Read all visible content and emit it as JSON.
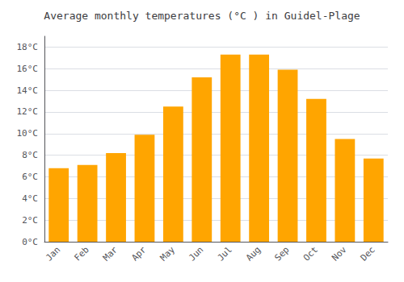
{
  "chart_data": {
    "type": "bar",
    "title": "Average monthly temperatures (°C ) in Guidel-Plage",
    "categories": [
      "Jan",
      "Feb",
      "Mar",
      "Apr",
      "May",
      "Jun",
      "Jul",
      "Aug",
      "Sep",
      "Oct",
      "Nov",
      "Dec"
    ],
    "values": [
      6.8,
      7.1,
      8.2,
      9.9,
      12.5,
      15.2,
      17.3,
      17.3,
      15.9,
      13.2,
      9.5,
      7.7
    ],
    "color": "#FFA500",
    "ylim": [
      0,
      19
    ],
    "yticks": [
      {
        "value": 0,
        "label": "0°C"
      },
      {
        "value": 2,
        "label": "2°C"
      },
      {
        "value": 4,
        "label": "4°C"
      },
      {
        "value": 6,
        "label": "6°C"
      },
      {
        "value": 8,
        "label": "8°C"
      },
      {
        "value": 10,
        "label": "10°C"
      },
      {
        "value": 12,
        "label": "12°C"
      },
      {
        "value": 14,
        "label": "14°C"
      },
      {
        "value": 16,
        "label": "16°C"
      },
      {
        "value": 18,
        "label": "18°C"
      }
    ],
    "grid": true
  }
}
